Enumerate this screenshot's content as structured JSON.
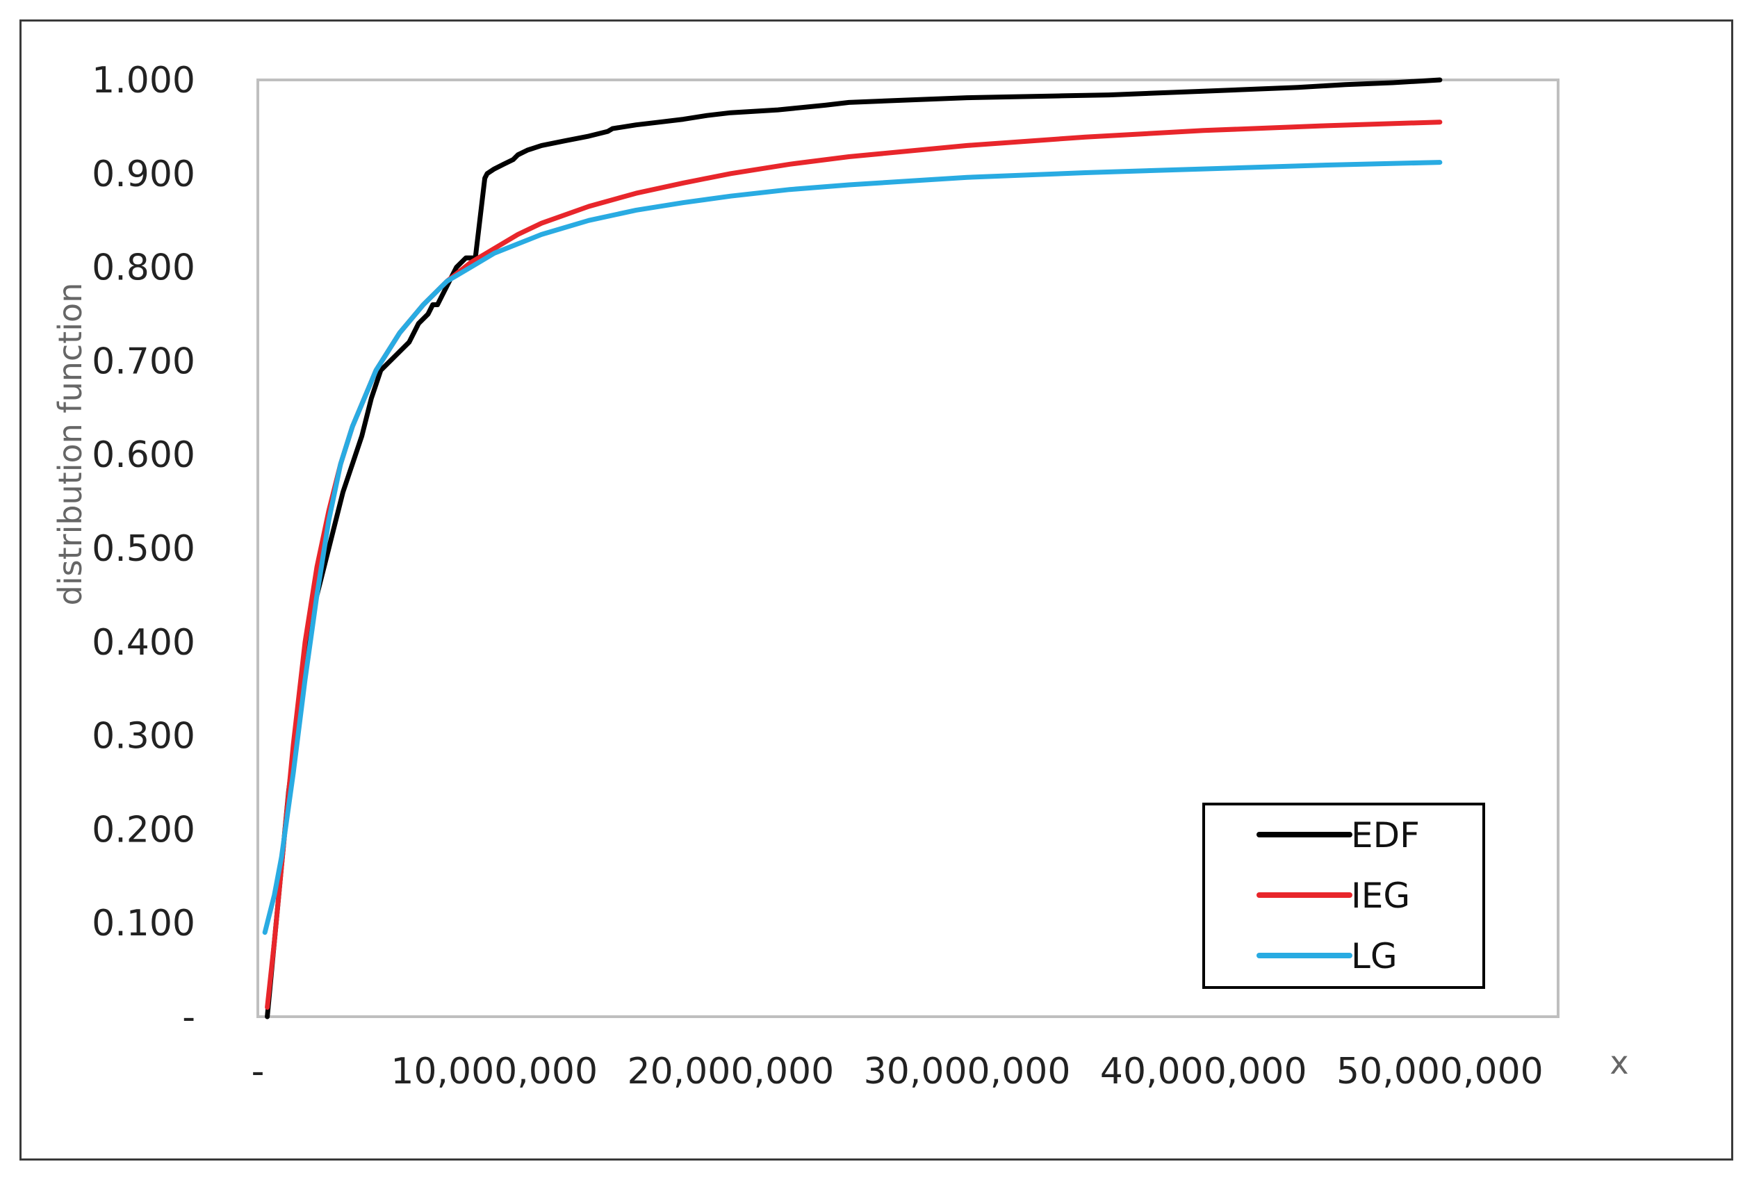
{
  "chart_data": {
    "type": "line",
    "title": "",
    "xlabel": "x",
    "ylabel": "distribution function",
    "xlim": [
      0,
      55000000
    ],
    "ylim": [
      0,
      1
    ],
    "x_ticks": [
      0,
      10000000,
      20000000,
      30000000,
      40000000,
      50000000
    ],
    "x_tick_labels": [
      "-",
      "10,000,000",
      "20,000,000",
      "30,000,000",
      "40,000,000",
      "50,000,000"
    ],
    "y_ticks": [
      0,
      0.1,
      0.2,
      0.3,
      0.4,
      0.5,
      0.6,
      0.7,
      0.8,
      0.9,
      1.0
    ],
    "y_tick_labels": [
      "-",
      "0.100",
      "0.200",
      "0.300",
      "0.400",
      "0.500",
      "0.600",
      "0.700",
      "0.800",
      "0.900",
      "1.000"
    ],
    "grid": false,
    "legend_position": "bottom-right",
    "series": [
      {
        "name": "EDF",
        "color": "#000000",
        "x": [
          400000,
          700000,
          1000000,
          1300000,
          1600000,
          2000000,
          2400000,
          2800000,
          3200000,
          3600000,
          4000000,
          4400000,
          4800000,
          5200000,
          5600000,
          6000000,
          6400000,
          6800000,
          7200000,
          7400000,
          7600000,
          8000000,
          8400000,
          8800000,
          9200000,
          9600000,
          9700000,
          10000000,
          10400000,
          10800000,
          11000000,
          11400000,
          12000000,
          13000000,
          14000000,
          14800000,
          15000000,
          16000000,
          17000000,
          18000000,
          19000000,
          20000000,
          22000000,
          24000000,
          25000000,
          26000000,
          28000000,
          30000000,
          32000000,
          34000000,
          36000000,
          38000000,
          40000000,
          42000000,
          44000000,
          46000000,
          48000000,
          50000000
        ],
        "y": [
          0.0,
          0.08,
          0.16,
          0.24,
          0.3,
          0.37,
          0.44,
          0.48,
          0.52,
          0.56,
          0.59,
          0.62,
          0.66,
          0.69,
          0.7,
          0.71,
          0.72,
          0.74,
          0.75,
          0.76,
          0.76,
          0.78,
          0.8,
          0.81,
          0.81,
          0.895,
          0.9,
          0.905,
          0.91,
          0.915,
          0.92,
          0.925,
          0.93,
          0.935,
          0.94,
          0.945,
          0.948,
          0.952,
          0.955,
          0.958,
          0.962,
          0.965,
          0.968,
          0.973,
          0.976,
          0.977,
          0.979,
          0.981,
          0.982,
          0.983,
          0.984,
          0.986,
          0.988,
          0.99,
          0.992,
          0.995,
          0.997,
          1.0
        ]
      },
      {
        "name": "IEG",
        "color": "#e8262b",
        "x": [
          400000,
          700000,
          1000000,
          1500000,
          2000000,
          2500000,
          3000000,
          3500000,
          4000000,
          5000000,
          6000000,
          7000000,
          8000000,
          9000000,
          10000000,
          11000000,
          12000000,
          14000000,
          16000000,
          18000000,
          20000000,
          22500000,
          25000000,
          30000000,
          35000000,
          40000000,
          45000000,
          50000000
        ],
        "y": [
          0.01,
          0.08,
          0.16,
          0.29,
          0.4,
          0.48,
          0.54,
          0.59,
          0.63,
          0.69,
          0.73,
          0.76,
          0.785,
          0.805,
          0.82,
          0.835,
          0.847,
          0.865,
          0.879,
          0.89,
          0.9,
          0.91,
          0.918,
          0.93,
          0.939,
          0.946,
          0.951,
          0.955
        ]
      },
      {
        "name": "LG",
        "color": "#29abe2",
        "x": [
          300000,
          700000,
          1000000,
          1500000,
          2000000,
          2500000,
          3000000,
          3500000,
          4000000,
          5000000,
          6000000,
          7000000,
          8000000,
          9000000,
          10000000,
          11000000,
          12000000,
          14000000,
          16000000,
          18000000,
          20000000,
          22500000,
          25000000,
          30000000,
          35000000,
          40000000,
          45000000,
          50000000
        ],
        "y": [
          0.09,
          0.13,
          0.17,
          0.26,
          0.36,
          0.45,
          0.53,
          0.59,
          0.63,
          0.69,
          0.73,
          0.76,
          0.785,
          0.8,
          0.815,
          0.825,
          0.835,
          0.85,
          0.861,
          0.869,
          0.876,
          0.883,
          0.888,
          0.896,
          0.901,
          0.905,
          0.909,
          0.912
        ]
      }
    ]
  }
}
